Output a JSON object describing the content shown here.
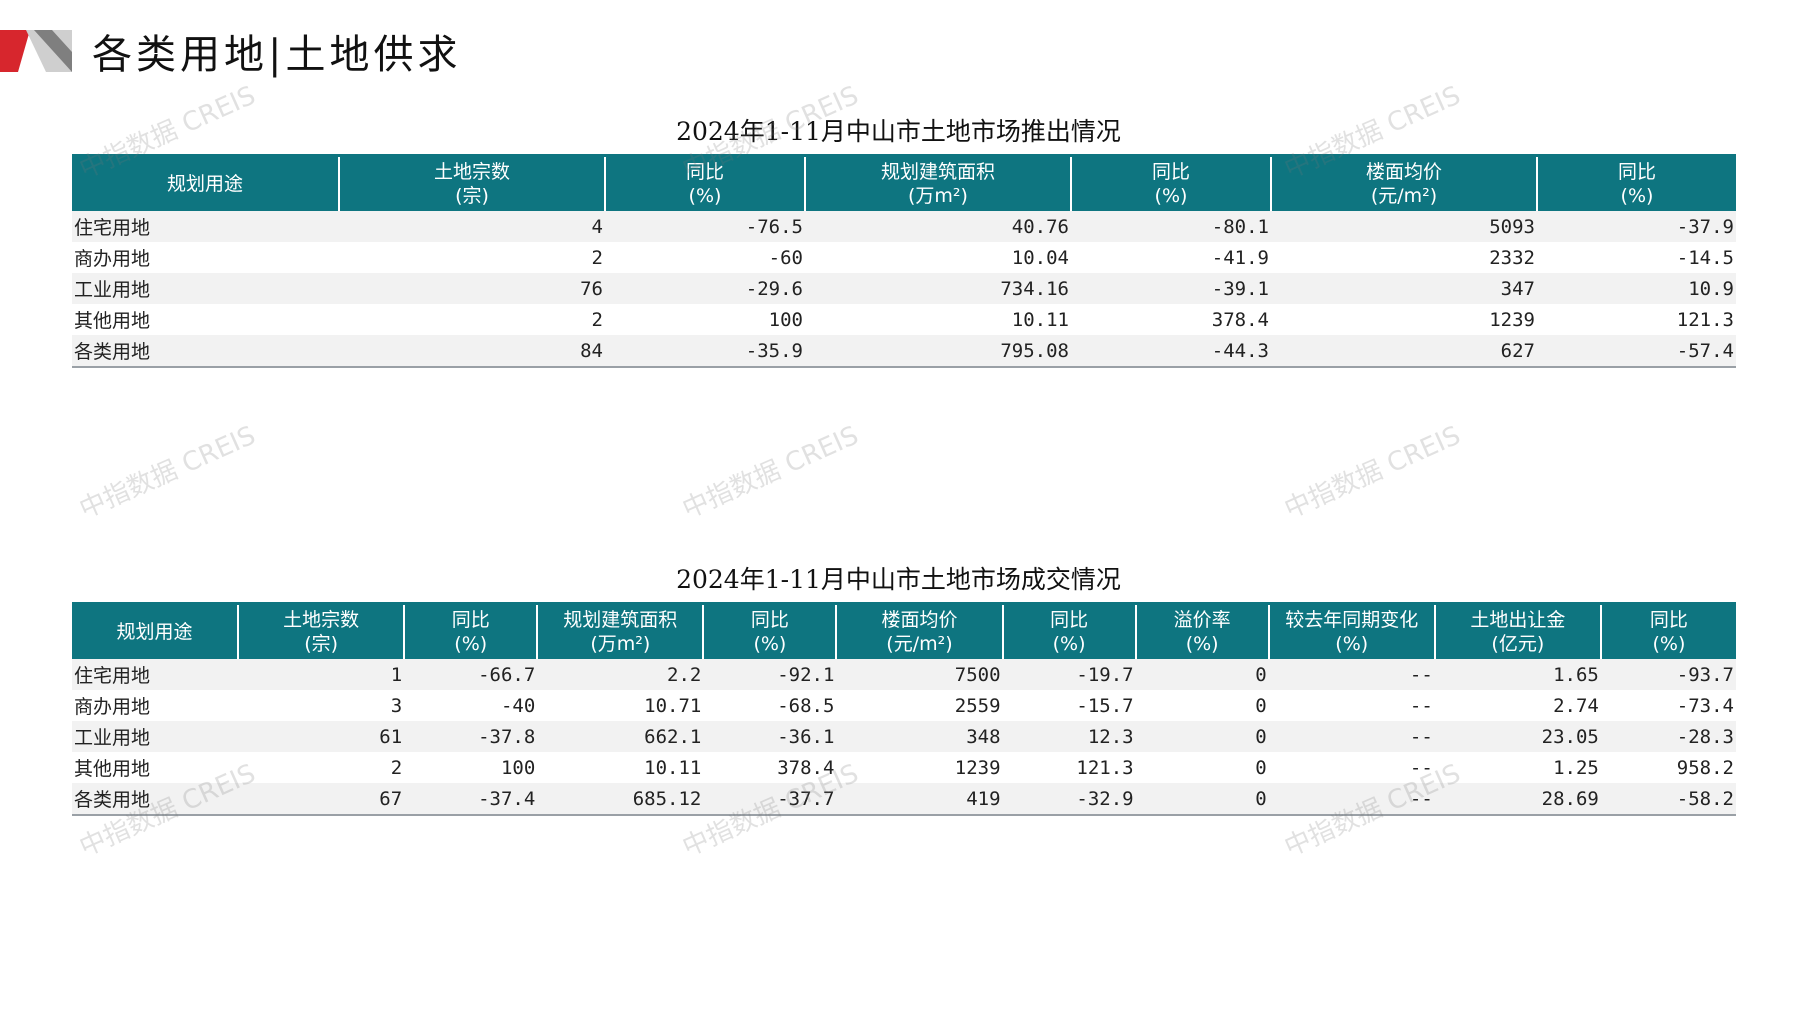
{
  "page": {
    "title": "各类用地|土地供求",
    "watermark": "中指数据 CREIS"
  },
  "supply": {
    "title": "2024年1-11月中山市土地市场推出情况",
    "headers": [
      {
        "main": "规划用途",
        "sub": ""
      },
      {
        "main": "土地宗数",
        "sub": "(宗)"
      },
      {
        "main": "同比",
        "sub": "(%)"
      },
      {
        "main": "规划建筑面积",
        "sub": "(万m²)"
      },
      {
        "main": "同比",
        "sub": "(%)"
      },
      {
        "main": "楼面均价",
        "sub": "(元/m²)"
      },
      {
        "main": "同比",
        "sub": "(%)"
      }
    ],
    "rows": [
      [
        "住宅用地",
        "4",
        "-76.5",
        "40.76",
        "-80.1",
        "5093",
        "-37.9"
      ],
      [
        "商办用地",
        "2",
        "-60",
        "10.04",
        "-41.9",
        "2332",
        "-14.5"
      ],
      [
        "工业用地",
        "76",
        "-29.6",
        "734.16",
        "-39.1",
        "347",
        "10.9"
      ],
      [
        "其他用地",
        "2",
        "100",
        "10.11",
        "378.4",
        "1239",
        "121.3"
      ],
      [
        "各类用地",
        "84",
        "-35.9",
        "795.08",
        "-44.3",
        "627",
        "-57.4"
      ]
    ]
  },
  "deal": {
    "title": "2024年1-11月中山市土地市场成交情况",
    "headers": [
      {
        "main": "规划用途",
        "sub": ""
      },
      {
        "main": "土地宗数",
        "sub": "(宗)"
      },
      {
        "main": "同比",
        "sub": "(%)"
      },
      {
        "main": "规划建筑面积",
        "sub": "(万m²)"
      },
      {
        "main": "同比",
        "sub": "(%)"
      },
      {
        "main": "楼面均价",
        "sub": "(元/m²)"
      },
      {
        "main": "同比",
        "sub": "(%)"
      },
      {
        "main": "溢价率",
        "sub": "(%)"
      },
      {
        "main": "较去年同期变化",
        "sub": "(%)"
      },
      {
        "main": "土地出让金",
        "sub": "(亿元)"
      },
      {
        "main": "同比",
        "sub": "(%)"
      }
    ],
    "rows": [
      [
        "住宅用地",
        "1",
        "-66.7",
        "2.2",
        "-92.1",
        "7500",
        "-19.7",
        "0",
        "--",
        "1.65",
        "-93.7"
      ],
      [
        "商办用地",
        "3",
        "-40",
        "10.71",
        "-68.5",
        "2559",
        "-15.7",
        "0",
        "--",
        "2.74",
        "-73.4"
      ],
      [
        "工业用地",
        "61",
        "-37.8",
        "662.1",
        "-36.1",
        "348",
        "12.3",
        "0",
        "--",
        "23.05",
        "-28.3"
      ],
      [
        "其他用地",
        "2",
        "100",
        "10.11",
        "378.4",
        "1239",
        "121.3",
        "0",
        "--",
        "1.25",
        "958.2"
      ],
      [
        "各类用地",
        "67",
        "-37.4",
        "685.12",
        "-37.7",
        "419",
        "-32.9",
        "0",
        "--",
        "28.69",
        "-58.2"
      ]
    ]
  }
}
